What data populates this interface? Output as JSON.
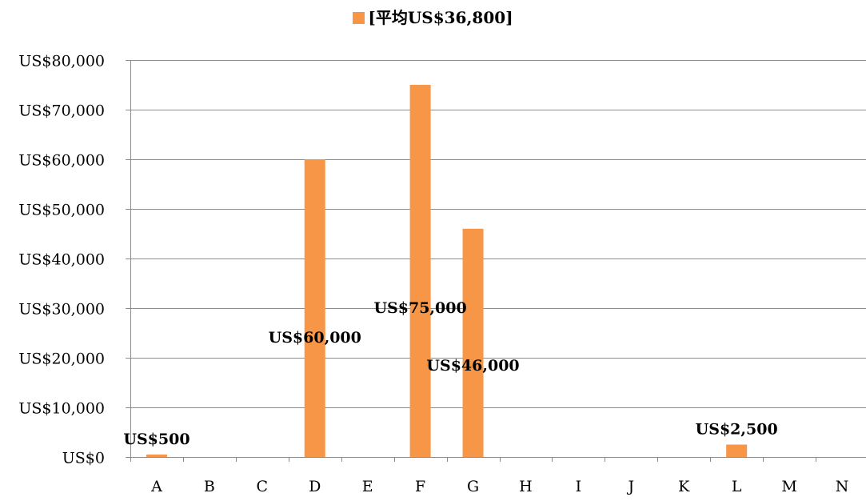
{
  "chart_data": {
    "type": "bar",
    "categories": [
      "A",
      "B",
      "C",
      "D",
      "E",
      "F",
      "G",
      "H",
      "I",
      "J",
      "K",
      "L",
      "M",
      "N"
    ],
    "series": [
      {
        "name": "[平均US$36,800]",
        "color": "#f79646",
        "values": [
          500,
          0,
          0,
          60000,
          0,
          75000,
          46000,
          0,
          0,
          0,
          0,
          2500,
          0,
          0
        ]
      }
    ],
    "data_labels": [
      {
        "category": "A",
        "text": "US$500"
      },
      {
        "category": "D",
        "text": "US$60,000"
      },
      {
        "category": "F",
        "text": "US$75,000"
      },
      {
        "category": "G",
        "text": "US$46,000"
      },
      {
        "category": "L",
        "text": "US$2,500"
      }
    ],
    "y_ticks": [
      "US$0",
      "US$10,000",
      "US$20,000",
      "US$30,000",
      "US$40,000",
      "US$50,000",
      "US$60,000",
      "US$70,000",
      "US$80,000"
    ],
    "ylim": [
      0,
      80000
    ],
    "grid": true,
    "legend_position": "top"
  }
}
